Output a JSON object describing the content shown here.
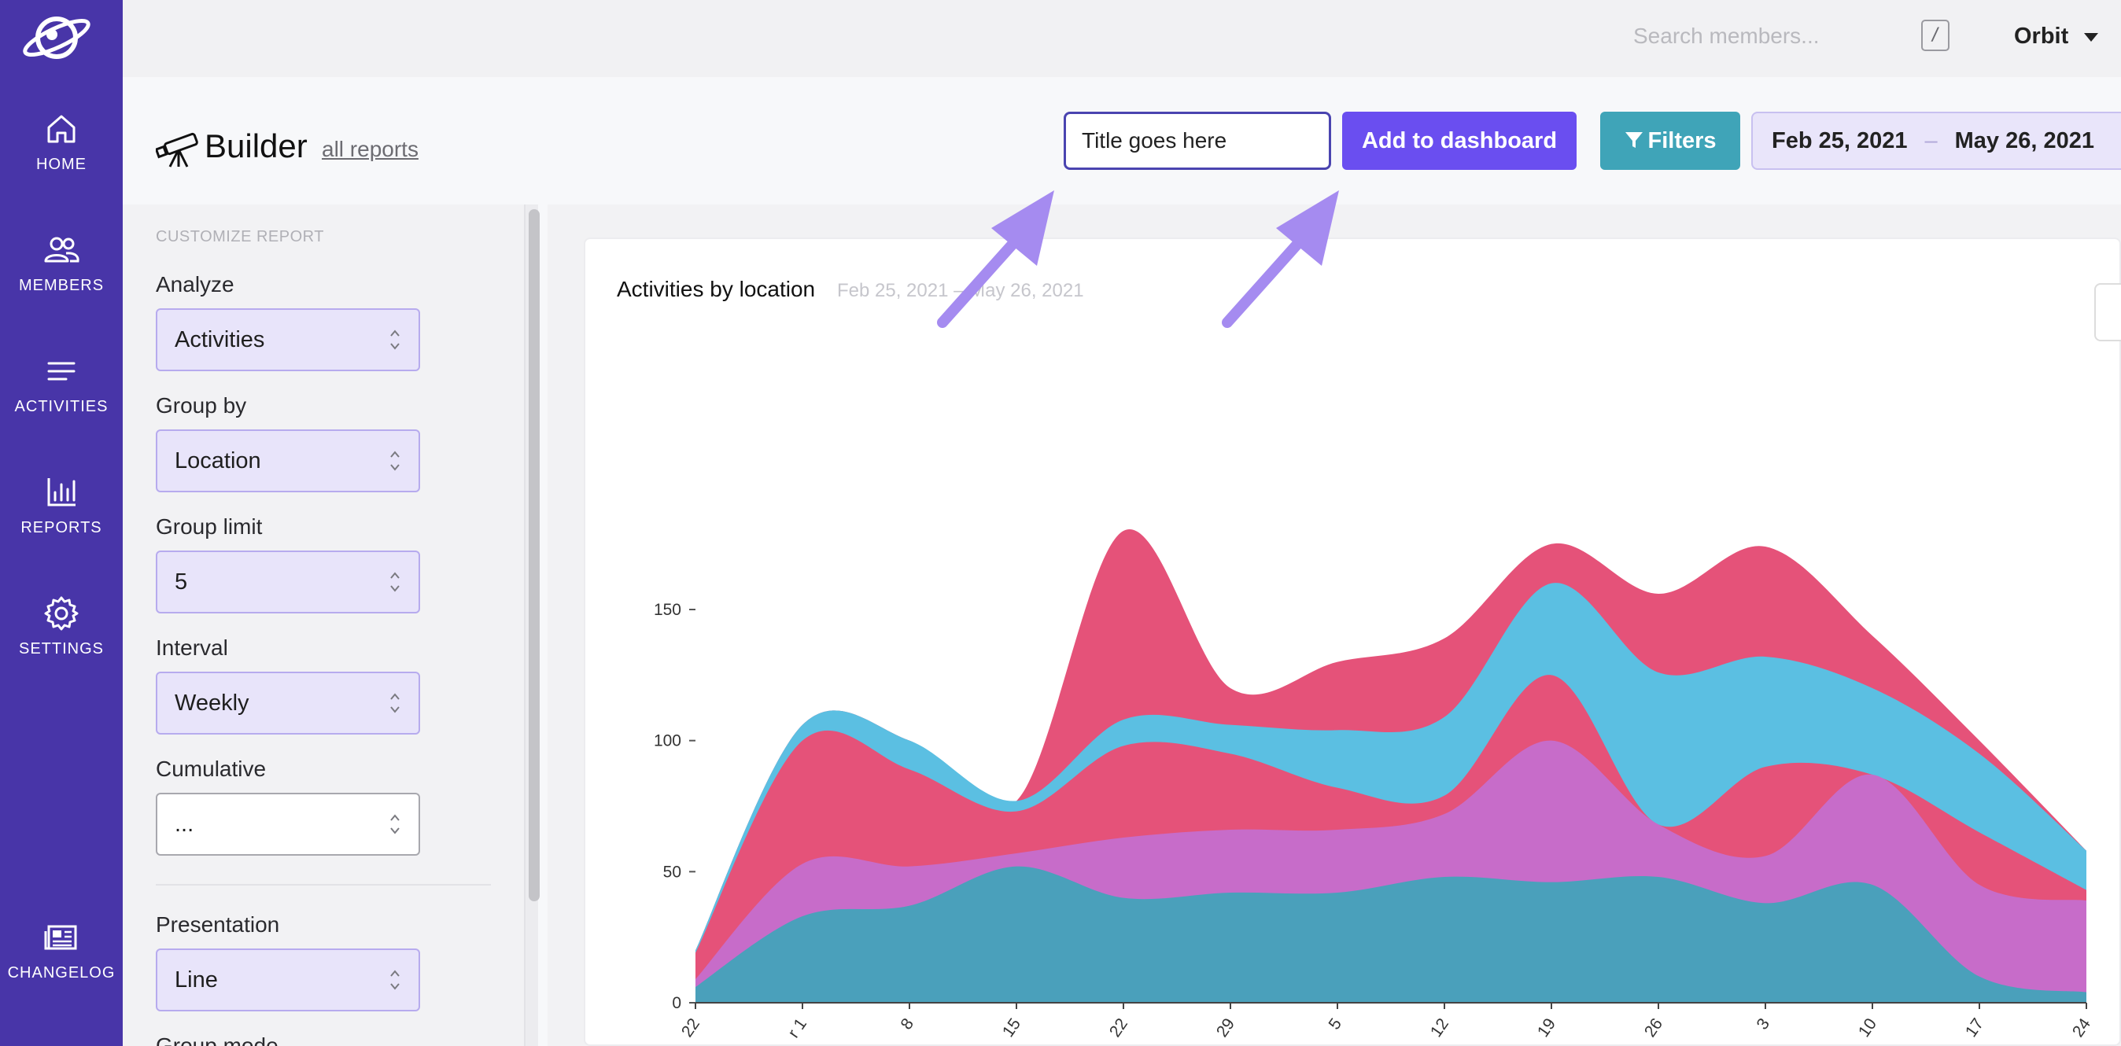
{
  "app": {
    "name": "Orbit"
  },
  "sidebar": {
    "items": [
      {
        "label": "HOME",
        "icon": "home-icon"
      },
      {
        "label": "MEMBERS",
        "icon": "members-icon"
      },
      {
        "label": "ACTIVITIES",
        "icon": "activities-icon"
      },
      {
        "label": "REPORTS",
        "icon": "reports-icon"
      },
      {
        "label": "SETTINGS",
        "icon": "gear-icon"
      },
      {
        "label": "CHANGELOG",
        "icon": "newspaper-icon"
      }
    ]
  },
  "topbar": {
    "search_placeholder": "Search members...",
    "shortcut_key": "/",
    "org_name": "Orbit"
  },
  "header": {
    "title": "Builder",
    "all_reports_link": "all reports",
    "title_input_placeholder": "Title goes here",
    "add_button": "Add to dashboard",
    "filters_button": "Filters",
    "date_start": "Feb 25, 2021",
    "date_separator": "–",
    "date_end": "May 26, 2021"
  },
  "panel": {
    "heading": "CUSTOMIZE REPORT",
    "fields": [
      {
        "label": "Analyze",
        "value": "Activities"
      },
      {
        "label": "Group by",
        "value": "Location"
      },
      {
        "label": "Group limit",
        "value": "5"
      },
      {
        "label": "Interval",
        "value": "Weekly"
      },
      {
        "label": "Cumulative",
        "value": "..."
      },
      {
        "label": "Presentation",
        "value": "Line"
      },
      {
        "label": "Group mode",
        "value": ""
      }
    ]
  },
  "colors": {
    "sidebar": "#4835a8",
    "primary_button": "#6a4ef0",
    "filters_button": "#3fa4b8",
    "annotation_arrow": "#a58bf0"
  },
  "chart_data": {
    "type": "area",
    "stacked": true,
    "title": "Activities by location",
    "subtitle": "Feb 25, 2021 – May 26, 2021",
    "y_ticks": [
      0,
      50,
      100,
      150
    ],
    "ylim": [
      0,
      180
    ],
    "x_tick_labels": [
      "22",
      "r 1",
      "8",
      "15",
      "22",
      "29",
      "5",
      "12",
      "19",
      "26",
      "3",
      "10",
      "17",
      "24"
    ],
    "series": [
      {
        "color": "#4aa0bb",
        "values": [
          6,
          33,
          37,
          52,
          40,
          42,
          42,
          48,
          46,
          48,
          38,
          45,
          10,
          4
        ]
      },
      {
        "color": "#c76cc9",
        "values": [
          3,
          20,
          15,
          5,
          23,
          24,
          24,
          24,
          54,
          20,
          18,
          42,
          35,
          35
        ]
      },
      {
        "color": "#e55279",
        "values": [
          10,
          47,
          37,
          16,
          35,
          29,
          16,
          7,
          25,
          0,
          34,
          0,
          20,
          4
        ]
      },
      {
        "color": "#5bbfe2",
        "values": [
          1,
          6,
          11,
          4,
          10,
          11,
          22,
          30,
          35,
          58,
          42,
          33,
          30,
          15
        ]
      },
      {
        "color": "#e55279",
        "values": [
          0,
          0,
          0,
          0,
          72,
          14,
          26,
          30,
          15,
          30,
          42,
          20,
          5,
          0
        ]
      }
    ]
  }
}
